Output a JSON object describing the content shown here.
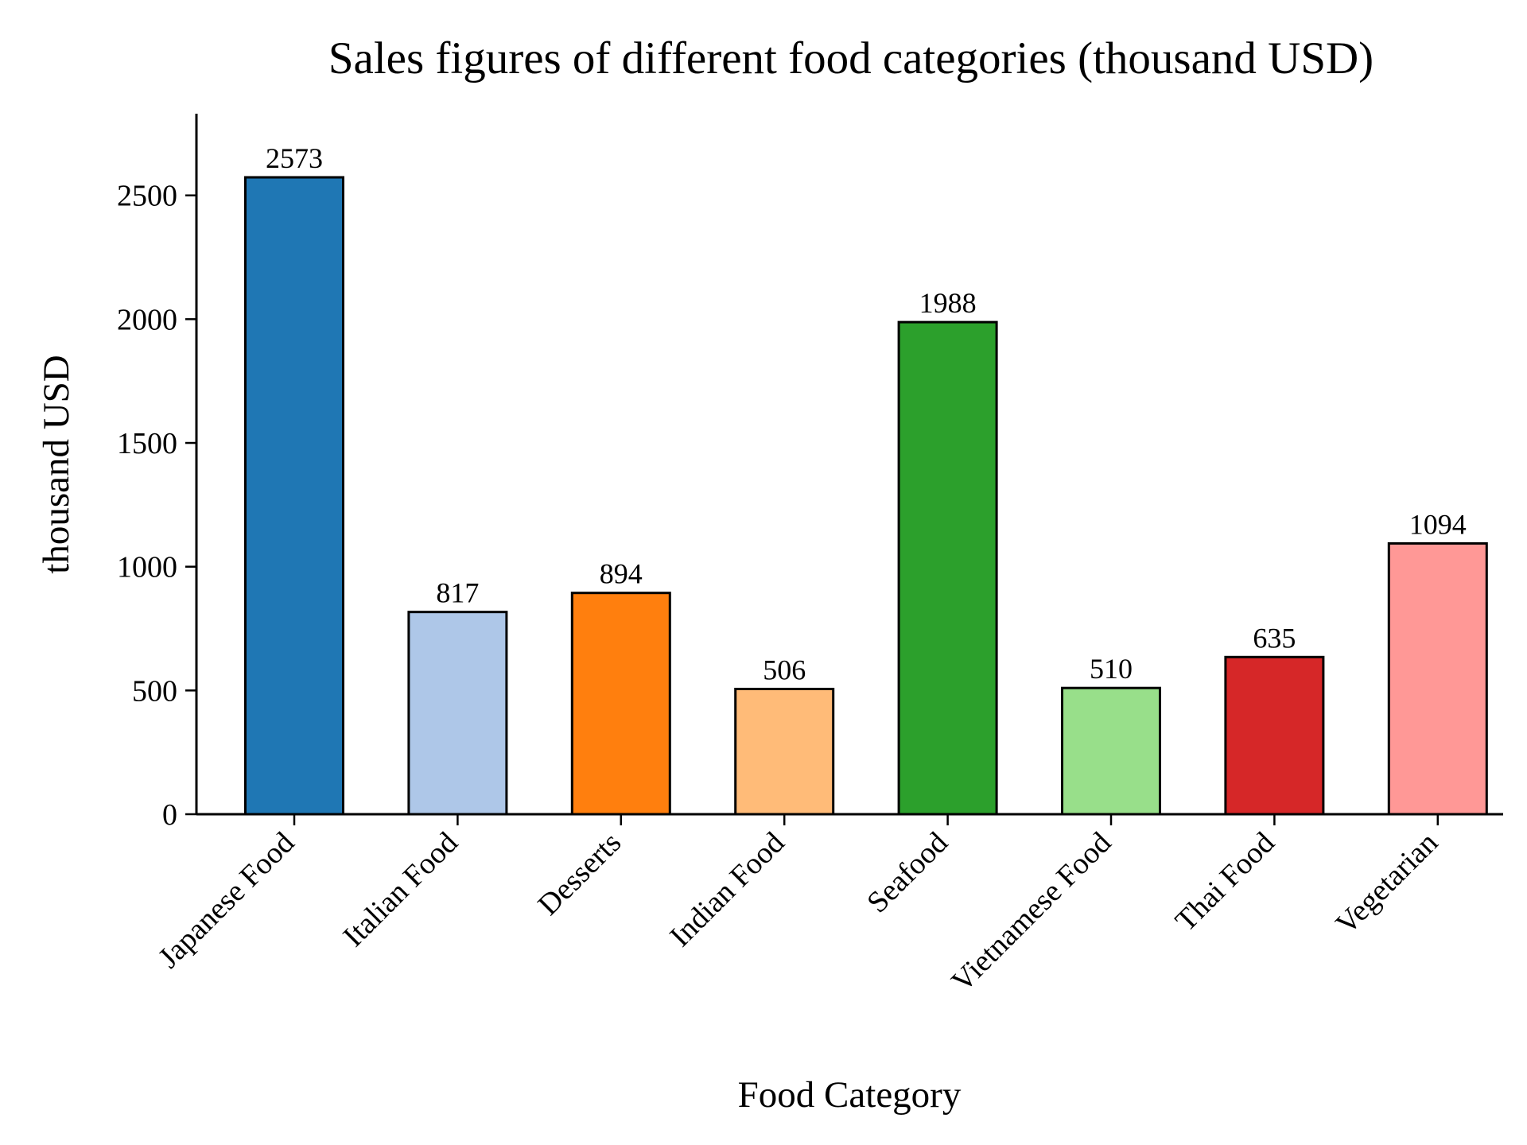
{
  "chart_data": {
    "type": "bar",
    "title": "Sales figures of different food categories (thousand USD)",
    "xlabel": "Food Category",
    "ylabel": "thousand USD",
    "categories": [
      "Japanese Food",
      "Italian Food",
      "Desserts",
      "Indian Food",
      "Seafood",
      "Vietnamese Food",
      "Thai Food",
      "Vegetarian"
    ],
    "values": [
      2573,
      817,
      894,
      506,
      1988,
      510,
      635,
      1094
    ],
    "colors": [
      "#1f77b4",
      "#aec7e8",
      "#ff7f0e",
      "#ffbb78",
      "#2ca02c",
      "#98df8a",
      "#d62728",
      "#ff9896"
    ],
    "yticks": [
      0,
      500,
      1000,
      1500,
      2000,
      2500
    ],
    "ylim": [
      0,
      2830
    ],
    "grid": false,
    "legend": "none"
  }
}
